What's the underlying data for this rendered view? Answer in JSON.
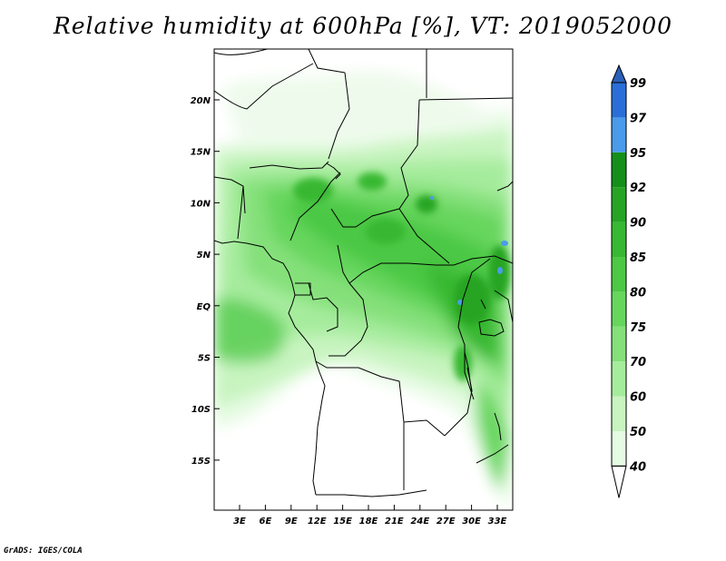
{
  "title": "Relative humidity at 600hPa [%], VT: 2019052000",
  "credit": "GrADS: IGES/COLA",
  "map": {
    "region": "Central Africa",
    "lat_labels": [
      "20N",
      "15N",
      "10N",
      "5N",
      "EQ",
      "5S",
      "10S",
      "15S"
    ],
    "lon_labels": [
      "3E",
      "6E",
      "9E",
      "12E",
      "15E",
      "18E",
      "21E",
      "24E",
      "27E",
      "30E",
      "33E"
    ]
  },
  "colorbar": {
    "levels": [
      40,
      50,
      60,
      70,
      75,
      80,
      85,
      90,
      92,
      95,
      97,
      99
    ],
    "colors": [
      "#ffffff",
      "#e6fbe3",
      "#c8f4c0",
      "#a6ec9d",
      "#85e07a",
      "#66d65d",
      "#4cc845",
      "#38b833",
      "#27a424",
      "#14901a",
      "#4a9bea",
      "#2a6fd8",
      "#2a60b8"
    ]
  }
}
